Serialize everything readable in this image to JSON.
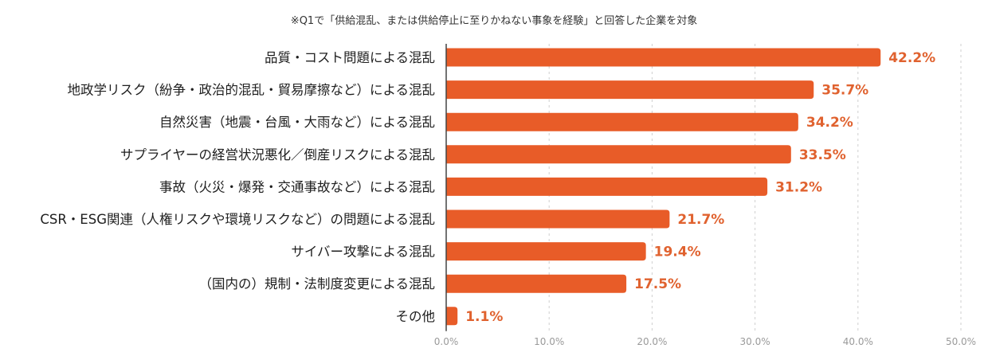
{
  "chart_data": {
    "type": "bar",
    "orientation": "horizontal",
    "title": "",
    "note": "※Q1で「供給混乱、または供給停止に至りかねない事象を経験」と回答した企業を対象",
    "categories": [
      "品質・コスト問題による混乱",
      "地政学リスク（紛争・政治的混乱・貿易摩擦など）による混乱",
      "自然災害（地震・台風・大雨など）による混乱",
      "サプライヤーの経営状況悪化／倒産リスクによる混乱",
      "事故（火災・爆発・交通事故など）による混乱",
      "CSR・ESG関連（人権リスクや環境リスクなど）の問題による混乱",
      "サイバー攻撃による混乱",
      "（国内の）規制・法制度変更による混乱",
      "その他"
    ],
    "values": [
      42.2,
      35.7,
      34.2,
      33.5,
      31.2,
      21.7,
      19.4,
      17.5,
      1.1
    ],
    "value_labels": [
      "42.2%",
      "35.7%",
      "34.2%",
      "33.5%",
      "31.2%",
      "21.7%",
      "19.4%",
      "17.5%",
      "1.1%"
    ],
    "xlim": [
      0,
      50
    ],
    "x_ticks": [
      0,
      10,
      20,
      30,
      40,
      50
    ],
    "x_tick_labels": [
      "0.0%",
      "10.0%",
      "20.0%",
      "30.0%",
      "40.0%",
      "50.0%"
    ],
    "grid": "vertical dashed",
    "xlabel": "",
    "ylabel": "",
    "colors": {
      "bar": "#e85c28",
      "value_text": "#e0622f",
      "axis": "#444444",
      "grid": "#cfcfcf",
      "tick_text": "#9a9a9a"
    }
  }
}
